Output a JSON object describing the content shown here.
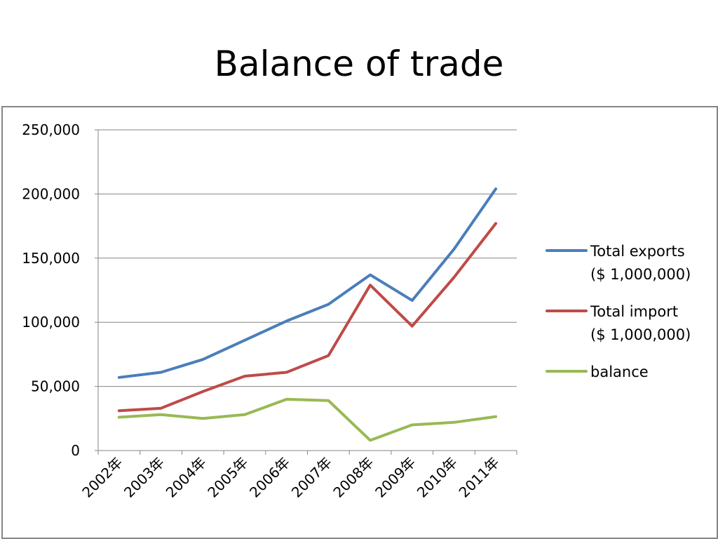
{
  "slide": {
    "title": "Balance of trade"
  },
  "chart_data": {
    "type": "line",
    "title": "",
    "xlabel": "",
    "ylabel": "",
    "categories": [
      "2002年",
      "2003年",
      "2004年",
      "2005年",
      "2006年",
      "2007年",
      "2008年",
      "2009年",
      "2010年",
      "2011年"
    ],
    "ylim": [
      0,
      250000
    ],
    "yticks": [
      0,
      50000,
      100000,
      150000,
      200000,
      250000
    ],
    "ytick_labels": [
      "0",
      "50,000",
      "100,000",
      "150,000",
      "200,000",
      "250,000"
    ],
    "grid": true,
    "legend_position": "right",
    "series": [
      {
        "name_lines": [
          "Total exports",
          "($ 1,000,000)"
        ],
        "color": "#4a7ebb",
        "values": [
          57000,
          61000,
          71000,
          86000,
          101000,
          114000,
          137000,
          117000,
          157000,
          204000
        ]
      },
      {
        "name_lines": [
          "Total import",
          "($ 1,000,000)"
        ],
        "color": "#be4b48",
        "values": [
          31000,
          33000,
          46000,
          58000,
          61000,
          74000,
          129000,
          97000,
          135000,
          177000
        ]
      },
      {
        "name_lines": [
          "balance"
        ],
        "color": "#98b954",
        "values": [
          26000,
          28000,
          25000,
          28000,
          40000,
          39000,
          8000,
          20000,
          22000,
          26500
        ]
      }
    ]
  }
}
